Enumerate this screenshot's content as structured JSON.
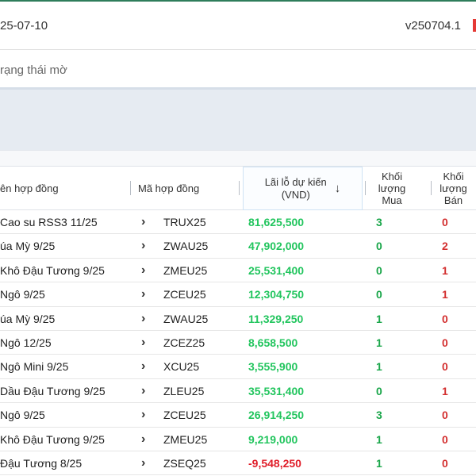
{
  "header": {
    "date": "25-07-10",
    "version": "v250704.1"
  },
  "filter": {
    "placeholder": "rạng thái mờ"
  },
  "table": {
    "columns": {
      "name": "ên hợp đồng",
      "code": "Mã hợp đồng",
      "pnl_line1": "Lãi lỗ dự kiến",
      "pnl_line2": "(VND)",
      "buy_line1": "Khối",
      "buy_line2": "lượng",
      "buy_line3": "Mua",
      "sell_line1": "Khối",
      "sell_line2": "lượng",
      "sell_line3": "Bán"
    },
    "rows": [
      {
        "name": "Cao su RSS3 11/25",
        "code": "TRUX25",
        "pnl": "81,625,500",
        "buy": "3",
        "sell": "0"
      },
      {
        "name": "úa Mỳ 9/25",
        "code": "ZWAU25",
        "pnl": "47,902,000",
        "buy": "0",
        "sell": "2"
      },
      {
        "name": "Khô Đậu Tương 9/25",
        "code": "ZMEU25",
        "pnl": "25,531,400",
        "buy": "0",
        "sell": "1"
      },
      {
        "name": "Ngô 9/25",
        "code": "ZCEU25",
        "pnl": "12,304,750",
        "buy": "0",
        "sell": "1"
      },
      {
        "name": "úa Mỳ 9/25",
        "code": "ZWAU25",
        "pnl": "11,329,250",
        "buy": "1",
        "sell": "0"
      },
      {
        "name": "Ngô 12/25",
        "code": "ZCEZ25",
        "pnl": "8,658,500",
        "buy": "1",
        "sell": "0"
      },
      {
        "name": "Ngô Mini 9/25",
        "code": "XCU25",
        "pnl": "3,555,900",
        "buy": "1",
        "sell": "0"
      },
      {
        "name": "Dầu Đậu Tương 9/25",
        "code": "ZLEU25",
        "pnl": "35,531,400",
        "buy": "0",
        "sell": "1"
      },
      {
        "name": "Ngô 9/25",
        "code": "ZCEU25",
        "pnl": "26,914,250",
        "buy": "3",
        "sell": "0"
      },
      {
        "name": "Khô Đậu Tương 9/25",
        "code": "ZMEU25",
        "pnl": "9,219,000",
        "buy": "1",
        "sell": "0"
      },
      {
        "name": "Đậu Tương 8/25",
        "code": "ZSEQ25",
        "pnl": "-9,548,250",
        "buy": "1",
        "sell": "0"
      }
    ]
  },
  "icons": {
    "sort": "arrow-down-icon",
    "row_expand": "chevron-right-icon"
  },
  "colors": {
    "profit": "#22c55e",
    "loss": "#e01e2a",
    "buy": "#1aa64a",
    "sell": "#d32f2f",
    "band": "#e6ebf2"
  }
}
